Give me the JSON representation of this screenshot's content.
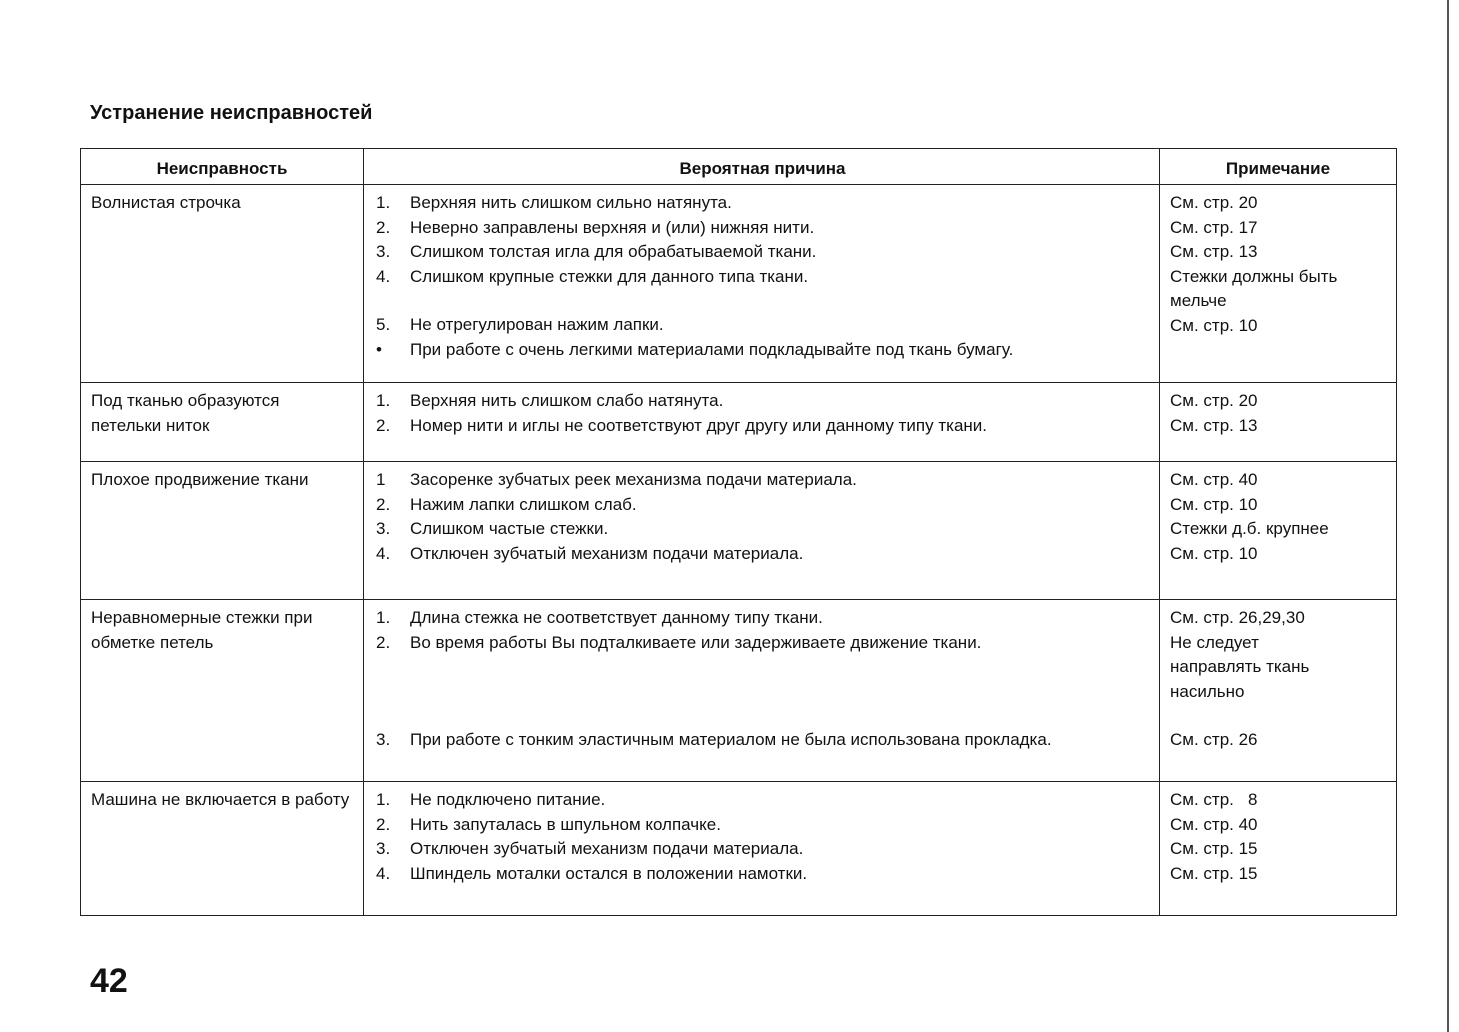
{
  "title": "Устранение неисправностей",
  "page_number": "42",
  "table": {
    "headers": [
      "Неисправность",
      "Вероятная причина",
      "Примечание"
    ],
    "rows": [
      {
        "problem": "Волнистая строчка",
        "causes": [
          {
            "n": "1.",
            "text": "Верхняя нить слишком сильно натянута."
          },
          {
            "n": "2.",
            "text": "Неверно заправлены верхняя и (или) нижняя нити."
          },
          {
            "n": "3.",
            "text": "Слишком толстая игла для обрабатываемой ткани."
          },
          {
            "n": "4.",
            "text": "Слишком крупные стежки для данного типа ткани."
          },
          {
            "n": "5.",
            "text": "Не отрегулирован нажим лапки."
          },
          {
            "n": "•",
            "text": "При работе с очень легкими материалами подкладывайте под ткань бумагу."
          }
        ],
        "notes": [
          "См. стр. 20",
          "См. стр. 17",
          "См. стр. 13",
          "Стежки должны быть мельче",
          "См. стр. 10"
        ]
      },
      {
        "problem": "Под тканью образуются петельки ниток",
        "causes": [
          {
            "n": "1.",
            "text": "Верхняя нить слишком слабо натянута."
          },
          {
            "n": "2.",
            "text": "Номер нити и иглы не соответствуют друг другу или данному типу ткани."
          }
        ],
        "notes": [
          "См. стр. 20",
          "См. стр. 13"
        ]
      },
      {
        "problem": "Плохое продвижение ткани",
        "causes": [
          {
            "n": "1",
            "text": "Засоренке зубчатых реек механизма подачи материала."
          },
          {
            "n": "2.",
            "text": "Нажим лапки слишком слаб."
          },
          {
            "n": "3.",
            "text": "Слишком частые стежки."
          },
          {
            "n": "4.",
            "text": "Отключен зубчатый механизм подачи материала."
          }
        ],
        "notes": [
          "См. стр. 40",
          "См. стр. 10",
          "Стежки д.б. крупнее",
          "См. стр. 10"
        ]
      },
      {
        "problem": "Неравномерные стежки при обметке петель",
        "causes": [
          {
            "n": "1.",
            "text": "Длина стежка не соответствует данному типу ткани."
          },
          {
            "n": "2.",
            "text": "Во время работы Вы подталкиваете или задерживаете движение ткани."
          },
          {
            "n": "3.",
            "text": "При работе с тонким эластичным материалом не была использована прокладка."
          }
        ],
        "notes": [
          "См. стр. 26,29,30",
          "Не следует направлять ткань насильно",
          "См. стр. 26"
        ]
      },
      {
        "problem": "Машина не включается в работу",
        "causes": [
          {
            "n": "1.",
            "text": "Не подключено питание."
          },
          {
            "n": "2.",
            "text": "Нить запуталась в шпульном колпачке."
          },
          {
            "n": "3.",
            "text": "Отключен зубчатый механизм подачи материала."
          },
          {
            "n": "4.",
            "text": "Шпиндель моталки остался в положении намотки."
          }
        ],
        "notes": [
          "См. стр.   8",
          "См. стр. 40",
          "См. стр. 15",
          "См. стр. 15"
        ]
      }
    ]
  }
}
